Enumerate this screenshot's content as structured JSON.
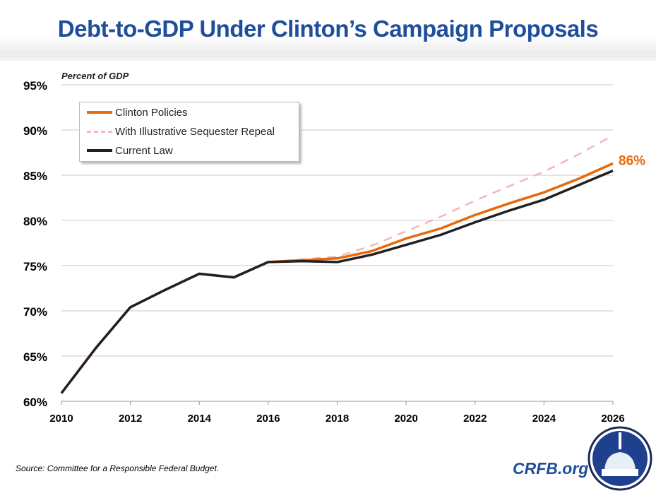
{
  "title": "Debt-to-GDP Under Clinton’s Campaign Proposals",
  "source": "Source: Committee for a Responsible Federal Budget.",
  "brand": "CRFB.org",
  "logo_icon": "capitol-dome-seal",
  "colors": {
    "title": "#1F4E9C",
    "clinton": "#E8680C",
    "sequester": "#F4B6B6",
    "current": "#231F20"
  },
  "chart_data": {
    "type": "line",
    "title": "Debt-to-GDP Under Clinton’s Campaign Proposals",
    "ylabel": "Percent of GDP",
    "xlabel": "",
    "xlim": [
      2010,
      2026
    ],
    "ylim": [
      60,
      95
    ],
    "x_ticks": [
      "2010",
      "2012",
      "2014",
      "2016",
      "2018",
      "2020",
      "2022",
      "2024",
      "2026"
    ],
    "y_ticks": [
      "60%",
      "65%",
      "70%",
      "75%",
      "80%",
      "85%",
      "90%",
      "95%"
    ],
    "grid": true,
    "legend": "top-left",
    "annotation": "86%",
    "series": [
      {
        "name": "Clinton Policies",
        "style": "solid",
        "x": [
          2010,
          2011,
          2012,
          2013,
          2014,
          2015,
          2016,
          2017,
          2018,
          2019,
          2020,
          2021,
          2022,
          2023,
          2024,
          2025,
          2026
        ],
        "values": [
          60.9,
          65.9,
          70.4,
          72.3,
          74.1,
          73.7,
          75.4,
          75.6,
          75.8,
          76.6,
          78.0,
          79.1,
          80.6,
          81.9,
          83.1,
          84.6,
          86.3
        ]
      },
      {
        "name": "With Illustrative Sequester Repeal",
        "style": "dashed",
        "x": [
          2016,
          2017,
          2018,
          2019,
          2020,
          2021,
          2022,
          2023,
          2024,
          2025,
          2026
        ],
        "values": [
          75.4,
          75.7,
          76.0,
          77.2,
          78.8,
          80.4,
          82.2,
          83.8,
          85.4,
          87.3,
          89.4
        ]
      },
      {
        "name": "Current Law",
        "style": "solid",
        "x": [
          2010,
          2011,
          2012,
          2013,
          2014,
          2015,
          2016,
          2017,
          2018,
          2019,
          2020,
          2021,
          2022,
          2023,
          2024,
          2025,
          2026
        ],
        "values": [
          60.9,
          65.9,
          70.4,
          72.3,
          74.1,
          73.7,
          75.4,
          75.5,
          75.4,
          76.2,
          77.3,
          78.4,
          79.8,
          81.1,
          82.3,
          83.9,
          85.5
        ]
      }
    ]
  }
}
